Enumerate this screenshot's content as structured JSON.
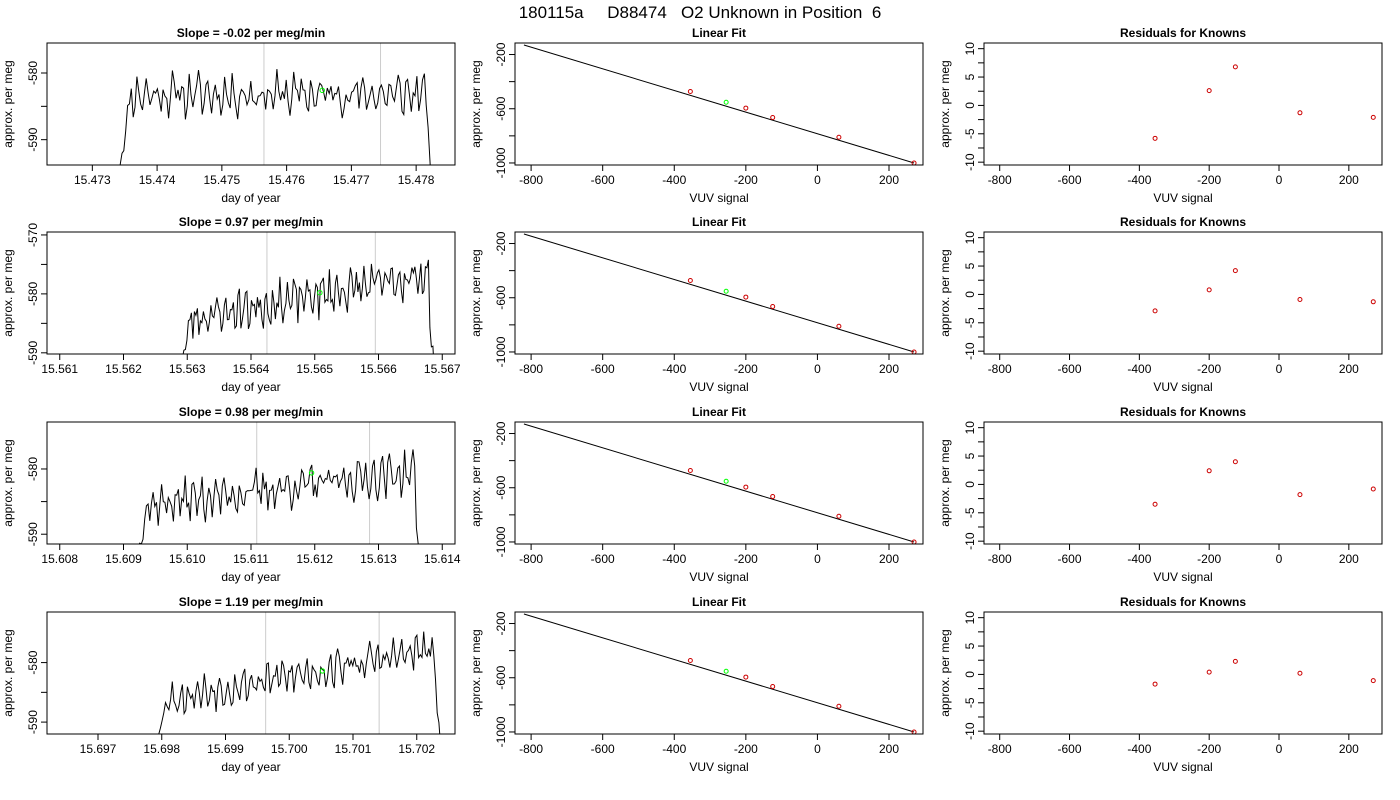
{
  "title": "180115a     D88474   O2 Unknown in Position  6",
  "colors": {
    "trace": "#000000",
    "highlight": "#00ff00",
    "known_points": "#cc0000",
    "window_lines": "#cccccc",
    "fit_line": "#000000"
  },
  "rows": [
    {
      "timeseries": {
        "title": "Slope =  -0.02  per meg/min",
        "xlabel": "day of year",
        "ylabel": "approx. per meg",
        "xlim": [
          15.4723,
          15.4786
        ],
        "ylim": [
          -593.8,
          -575.5
        ],
        "xticks": [
          "15.473",
          "15.474",
          "15.475",
          "15.476",
          "15.477",
          "15.478"
        ],
        "yticks": [
          "-590",
          "-580"
        ],
        "vlines": [
          15.47565,
          15.47745
        ],
        "start": 15.4734,
        "end": 15.4783,
        "level": -583.2,
        "amplitude": 2.6,
        "marker": {
          "x": 15.47655,
          "y": -582.6
        },
        "seed": 11
      },
      "fit": {
        "title": "Linear Fit",
        "xlabel": "VUV signal",
        "ylabel": "approx. per meg",
        "xlim": [
          -845,
          295
        ],
        "ylim": [
          -1015,
          -115
        ],
        "xticks": [
          "-800",
          "-600",
          "-400",
          "-200",
          "0",
          "200"
        ],
        "yticks": [
          "-1000",
          "-600",
          "-200"
        ],
        "line": {
          "x": [
            -820,
            270
          ],
          "y": [
            -130,
            -1000
          ]
        },
        "points": [
          {
            "x": -355,
            "y": -473
          },
          {
            "x": -200,
            "y": -595
          },
          {
            "x": -125,
            "y": -665
          },
          {
            "x": 60,
            "y": -810
          },
          {
            "x": 270,
            "y": -1000
          }
        ],
        "unknown": {
          "x": -255,
          "y": -552
        }
      },
      "residuals": {
        "title": "Residuals for Knowns",
        "xlabel": "VUV signal",
        "ylabel": "approx. per meg",
        "xlim": [
          -845,
          295
        ],
        "ylim": [
          -10.5,
          11
        ],
        "xticks": [
          "-800",
          "-600",
          "-400",
          "-200",
          "0",
          "200"
        ],
        "yticks": [
          "-10",
          "-5",
          "0",
          "5",
          "10"
        ],
        "points": [
          {
            "x": -355,
            "y": -5.8
          },
          {
            "x": -200,
            "y": 2.6
          },
          {
            "x": -125,
            "y": 6.8
          },
          {
            "x": 60,
            "y": -1.3
          },
          {
            "x": 270,
            "y": -2.1
          }
        ]
      }
    },
    {
      "timeseries": {
        "title": "Slope =  0.97  per meg/min",
        "xlabel": "day of year",
        "ylabel": "approx. per meg",
        "xlim": [
          15.5608,
          15.5672
        ],
        "ylim": [
          -590.2,
          -569.5
        ],
        "xticks": [
          "15.561",
          "15.562",
          "15.563",
          "15.564",
          "15.565",
          "15.566",
          "15.567"
        ],
        "yticks": [
          "-590",
          "-580",
          "-570"
        ],
        "vlines": [
          15.56425,
          15.56595
        ],
        "start": 15.5629,
        "end": 15.5669,
        "level": -580.5,
        "amplitude": 3.0,
        "slope_per_day": 2000,
        "marker": {
          "x": 15.56508,
          "y": -579.8
        },
        "seed": 23
      },
      "fit": {
        "title": "Linear Fit",
        "xlabel": "VUV signal",
        "ylabel": "approx. per meg",
        "xlim": [
          -845,
          295
        ],
        "ylim": [
          -1015,
          -115
        ],
        "xticks": [
          "-800",
          "-600",
          "-400",
          "-200",
          "0",
          "200"
        ],
        "yticks": [
          "-1000",
          "-600",
          "-200"
        ],
        "line": {
          "x": [
            -820,
            270
          ],
          "y": [
            -130,
            -1000
          ]
        },
        "points": [
          {
            "x": -355,
            "y": -473
          },
          {
            "x": -200,
            "y": -595
          },
          {
            "x": -125,
            "y": -665
          },
          {
            "x": 60,
            "y": -810
          },
          {
            "x": 270,
            "y": -1000
          }
        ],
        "unknown": {
          "x": -255,
          "y": -552
        }
      },
      "residuals": {
        "title": "Residuals for Knowns",
        "xlabel": "VUV signal",
        "ylabel": "approx. per meg",
        "xlim": [
          -845,
          295
        ],
        "ylim": [
          -10.5,
          11
        ],
        "xticks": [
          "-800",
          "-600",
          "-400",
          "-200",
          "0",
          "200"
        ],
        "yticks": [
          "-10",
          "-5",
          "0",
          "5",
          "10"
        ],
        "points": [
          {
            "x": -355,
            "y": -2.9
          },
          {
            "x": -200,
            "y": 0.8
          },
          {
            "x": -125,
            "y": 4.2
          },
          {
            "x": 60,
            "y": -0.9
          },
          {
            "x": 270,
            "y": -1.3
          }
        ]
      }
    },
    {
      "timeseries": {
        "title": "Slope =  0.98  per meg/min",
        "xlabel": "day of year",
        "ylabel": "approx. per meg",
        "xlim": [
          15.6078,
          15.6142
        ],
        "ylim": [
          -591.5,
          -572.8
        ],
        "xticks": [
          "15.608",
          "15.609",
          "15.610",
          "15.611",
          "15.612",
          "15.613",
          "15.614"
        ],
        "yticks": [
          "-590",
          "-580"
        ],
        "vlines": [
          15.61109,
          15.61286
        ],
        "start": 15.6092,
        "end": 15.6137,
        "level": -583.0,
        "amplitude": 2.6,
        "slope_per_day": 1200,
        "marker": {
          "x": 15.61195,
          "y": -580.6
        },
        "seed": 37
      },
      "fit": {
        "title": "Linear Fit",
        "xlabel": "VUV signal",
        "ylabel": "approx. per meg",
        "xlim": [
          -845,
          295
        ],
        "ylim": [
          -1015,
          -115
        ],
        "xticks": [
          "-800",
          "-600",
          "-400",
          "-200",
          "0",
          "200"
        ],
        "yticks": [
          "-1000",
          "-600",
          "-200"
        ],
        "line": {
          "x": [
            -820,
            270
          ],
          "y": [
            -130,
            -1000
          ]
        },
        "points": [
          {
            "x": -355,
            "y": -473
          },
          {
            "x": -200,
            "y": -595
          },
          {
            "x": -125,
            "y": -665
          },
          {
            "x": 60,
            "y": -810
          },
          {
            "x": 270,
            "y": -1000
          }
        ],
        "unknown": {
          "x": -255,
          "y": -552
        }
      },
      "residuals": {
        "title": "Residuals for Knowns",
        "xlabel": "VUV signal",
        "ylabel": "approx. per meg",
        "xlim": [
          -845,
          295
        ],
        "ylim": [
          -10.5,
          11
        ],
        "xticks": [
          "-800",
          "-600",
          "-400",
          "-200",
          "0",
          "200"
        ],
        "yticks": [
          "-10",
          "-5",
          "0",
          "5",
          "10"
        ],
        "points": [
          {
            "x": -355,
            "y": -3.5
          },
          {
            "x": -200,
            "y": 2.4
          },
          {
            "x": -125,
            "y": 4.0
          },
          {
            "x": 60,
            "y": -1.8
          },
          {
            "x": 270,
            "y": -0.8
          }
        ]
      }
    },
    {
      "timeseries": {
        "title": "Slope =  1.19  per meg/min",
        "xlabel": "day of year",
        "ylabel": "approx. per meg",
        "xlim": [
          15.6962,
          15.7026
        ],
        "ylim": [
          -592.0,
          -571.5
        ],
        "xticks": [
          "15.697",
          "15.698",
          "15.699",
          "15.700",
          "15.701",
          "15.702"
        ],
        "yticks": [
          "-590",
          "-580"
        ],
        "vlines": [
          15.69963,
          15.70141
        ],
        "start": 15.6979,
        "end": 15.7024,
        "level": -582.0,
        "amplitude": 2.5,
        "slope_per_day": 2000,
        "marker": {
          "x": 15.70052,
          "y": -581.4
        },
        "seed": 53
      },
      "fit": {
        "title": "Linear Fit",
        "xlabel": "VUV signal",
        "ylabel": "approx. per meg",
        "xlim": [
          -845,
          295
        ],
        "ylim": [
          -1015,
          -115
        ],
        "xticks": [
          "-800",
          "-600",
          "-400",
          "-200",
          "0",
          "200"
        ],
        "yticks": [
          "-1000",
          "-600",
          "-200"
        ],
        "line": {
          "x": [
            -820,
            270
          ],
          "y": [
            -130,
            -1000
          ]
        },
        "points": [
          {
            "x": -355,
            "y": -473
          },
          {
            "x": -200,
            "y": -595
          },
          {
            "x": -125,
            "y": -665
          },
          {
            "x": 60,
            "y": -810
          },
          {
            "x": 270,
            "y": -1000
          }
        ],
        "unknown": {
          "x": -255,
          "y": -552
        }
      },
      "residuals": {
        "title": "Residuals for Knowns",
        "xlabel": "VUV signal",
        "ylabel": "approx. per meg",
        "xlim": [
          -845,
          295
        ],
        "ylim": [
          -10.5,
          11
        ],
        "xticks": [
          "-800",
          "-600",
          "-400",
          "-200",
          "0",
          "200"
        ],
        "yticks": [
          "-10",
          "-5",
          "0",
          "5",
          "10"
        ],
        "points": [
          {
            "x": -355,
            "y": -1.7
          },
          {
            "x": -200,
            "y": 0.4
          },
          {
            "x": -125,
            "y": 2.3
          },
          {
            "x": 60,
            "y": 0.2
          },
          {
            "x": 270,
            "y": -1.1
          }
        ]
      }
    }
  ]
}
